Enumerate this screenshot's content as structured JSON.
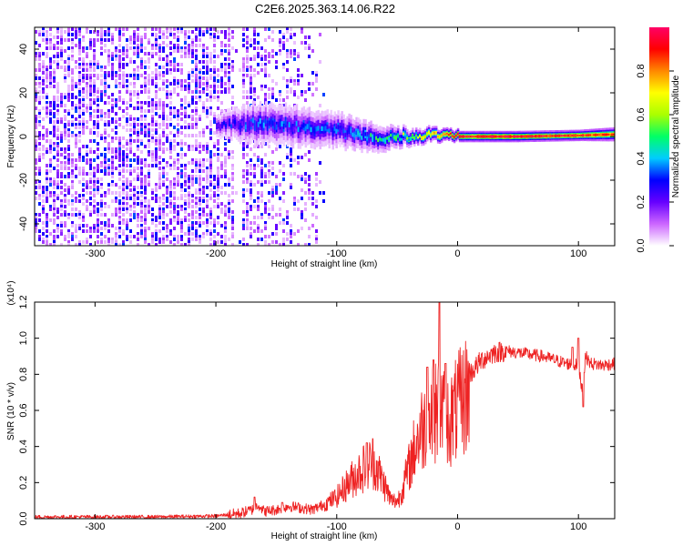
{
  "title": "C2E6.2025.363.14.06.R22",
  "chart_data": [
    {
      "type": "heatmap",
      "name": "spectrogram",
      "xlabel": "Height of straight line (km)",
      "ylabel": "Frequency (Hz)",
      "xlim": [
        -350,
        130
      ],
      "ylim": [
        -50,
        50
      ],
      "xticks": [
        -300,
        -200,
        -100,
        0,
        100
      ],
      "xtick_labels": [
        "-300",
        "-200",
        "-100",
        "0",
        "100"
      ],
      "yticks": [
        -40,
        -20,
        0,
        20,
        40
      ],
      "ytick_labels": [
        "-40",
        "-20",
        "0",
        "20",
        "40"
      ],
      "colorbar": {
        "label": "Normalized spectral amplitude",
        "range": [
          0,
          1
        ],
        "ticks": [
          0.0,
          0.2,
          0.4,
          0.6,
          0.8
        ],
        "tick_labels": [
          "0.0",
          "0.2",
          "0.4",
          "0.6",
          "0.8"
        ],
        "colors": [
          "#ffffff",
          "#cc66ff",
          "#6600ff",
          "#0000ff",
          "#00ccff",
          "#00ff66",
          "#aaff00",
          "#ffff00",
          "#ff8800",
          "#ff0000",
          "#ff0066"
        ]
      },
      "features": {
        "noise_region_km": [
          -350,
          -110
        ],
        "noise_dense_km": [
          -350,
          -200
        ],
        "signal_band": [
          {
            "x": -200,
            "center_hz": 5,
            "halfwidth_hz": 4,
            "amp": 0.25
          },
          {
            "x": -170,
            "center_hz": 6,
            "halfwidth_hz": 7,
            "amp": 0.35
          },
          {
            "x": -140,
            "center_hz": 5,
            "halfwidth_hz": 7,
            "amp": 0.35
          },
          {
            "x": -100,
            "center_hz": 3,
            "halfwidth_hz": 6,
            "amp": 0.35
          },
          {
            "x": -70,
            "center_hz": -1,
            "halfwidth_hz": 5,
            "amp": 0.45
          },
          {
            "x": -40,
            "center_hz": 0,
            "halfwidth_hz": 3,
            "amp": 0.6
          },
          {
            "x": -20,
            "center_hz": 1,
            "halfwidth_hz": 2.5,
            "amp": 0.75
          },
          {
            "x": 0,
            "center_hz": 0,
            "halfwidth_hz": 2,
            "amp": 0.95
          },
          {
            "x": 50,
            "center_hz": 0,
            "halfwidth_hz": 2,
            "amp": 0.95
          },
          {
            "x": 100,
            "center_hz": 0.5,
            "halfwidth_hz": 2,
            "amp": 0.9
          },
          {
            "x": 130,
            "center_hz": 1,
            "halfwidth_hz": 2.5,
            "amp": 0.85
          }
        ]
      }
    },
    {
      "type": "line",
      "name": "snr",
      "xlabel": "Height of straight line (km)",
      "ylabel": "SNR (10 * v/v)",
      "y_scale_label": "(x10⁴)",
      "xlim": [
        -350,
        130
      ],
      "ylim": [
        0,
        1.2
      ],
      "xticks": [
        -300,
        -200,
        -100,
        0,
        100
      ],
      "xtick_labels": [
        "-300",
        "-200",
        "-100",
        "0",
        "100"
      ],
      "yticks": [
        0.0,
        0.2,
        0.4,
        0.6,
        0.8,
        1.0,
        1.2
      ],
      "ytick_labels": [
        "0.0",
        "0.2",
        "0.4",
        "0.6",
        "0.8",
        "1.0",
        "1.2"
      ],
      "line_color": "#ee2222",
      "series": [
        {
          "name": "SNR",
          "x": [
            -350,
            -300,
            -250,
            -200,
            -180,
            -170,
            -165,
            -160,
            -150,
            -140,
            -130,
            -120,
            -110,
            -100,
            -90,
            -80,
            -70,
            -65,
            -60,
            -55,
            -50,
            -45,
            -40,
            -35,
            -30,
            -25,
            -20,
            -15,
            -10,
            -5,
            0,
            10,
            20,
            30,
            40,
            50,
            60,
            70,
            80,
            90,
            100,
            103,
            106,
            110,
            120,
            130
          ],
          "y": [
            0.01,
            0.01,
            0.01,
            0.015,
            0.03,
            0.05,
            0.08,
            0.04,
            0.05,
            0.07,
            0.06,
            0.05,
            0.08,
            0.12,
            0.2,
            0.27,
            0.32,
            0.25,
            0.18,
            0.1,
            0.1,
            0.2,
            0.32,
            0.45,
            0.55,
            0.6,
            0.62,
            0.7,
            0.6,
            0.62,
            0.68,
            0.8,
            0.88,
            0.92,
            0.93,
            0.92,
            0.91,
            0.9,
            0.88,
            0.86,
            0.85,
            0.72,
            0.9,
            0.86,
            0.85,
            0.86
          ],
          "spikes": [
            {
              "x": -168,
              "y": 0.12
            },
            {
              "x": -145,
              "y": 0.09
            },
            {
              "x": -75,
              "y": 0.42
            },
            {
              "x": -25,
              "y": 0.84
            },
            {
              "x": -20,
              "y": 0.88
            },
            {
              "x": -15,
              "y": 1.2
            },
            {
              "x": -10,
              "y": 0.86
            },
            {
              "x": 95,
              "y": 0.95
            },
            {
              "x": 100,
              "y": 1.0
            },
            {
              "x": 104,
              "y": 0.62
            }
          ]
        }
      ]
    }
  ]
}
